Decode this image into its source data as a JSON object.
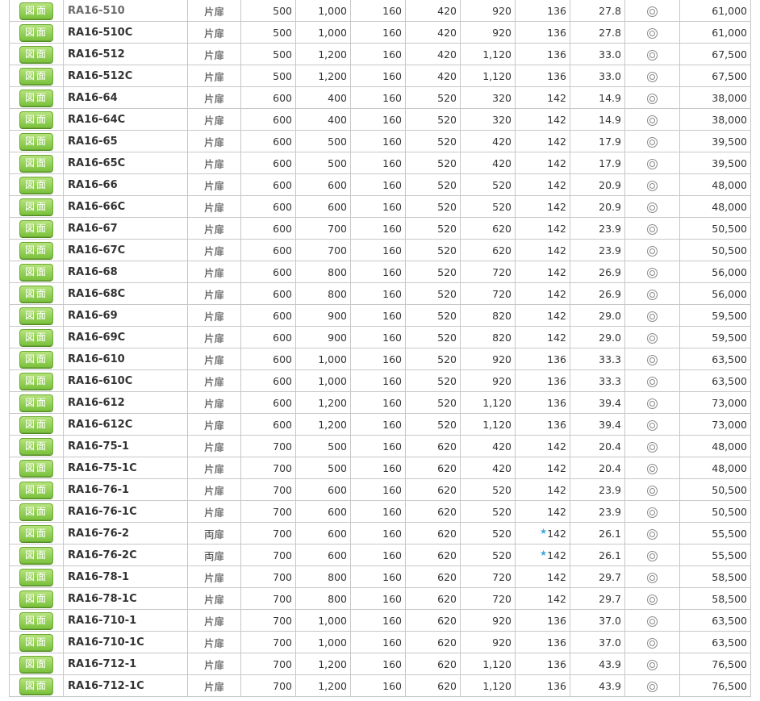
{
  "button_label": "図面",
  "rows": [
    [
      "RA16-510",
      "片扉",
      "500",
      "1,000",
      "160",
      "420",
      "920",
      "136",
      "27.8",
      "◎",
      "61,000",
      false,
      true
    ],
    [
      "RA16-510C",
      "片扉",
      "500",
      "1,000",
      "160",
      "420",
      "920",
      "136",
      "27.8",
      "◎",
      "61,000",
      false,
      false
    ],
    [
      "RA16-512",
      "片扉",
      "500",
      "1,200",
      "160",
      "420",
      "1,120",
      "136",
      "33.0",
      "◎",
      "67,500",
      false,
      false
    ],
    [
      "RA16-512C",
      "片扉",
      "500",
      "1,200",
      "160",
      "420",
      "1,120",
      "136",
      "33.0",
      "◎",
      "67,500",
      false,
      false
    ],
    [
      "RA16-64",
      "片扉",
      "600",
      "400",
      "160",
      "520",
      "320",
      "142",
      "14.9",
      "◎",
      "38,000",
      false,
      false
    ],
    [
      "RA16-64C",
      "片扉",
      "600",
      "400",
      "160",
      "520",
      "320",
      "142",
      "14.9",
      "◎",
      "38,000",
      false,
      false
    ],
    [
      "RA16-65",
      "片扉",
      "600",
      "500",
      "160",
      "520",
      "420",
      "142",
      "17.9",
      "◎",
      "39,500",
      false,
      false
    ],
    [
      "RA16-65C",
      "片扉",
      "600",
      "500",
      "160",
      "520",
      "420",
      "142",
      "17.9",
      "◎",
      "39,500",
      false,
      false
    ],
    [
      "RA16-66",
      "片扉",
      "600",
      "600",
      "160",
      "520",
      "520",
      "142",
      "20.9",
      "◎",
      "48,000",
      false,
      false
    ],
    [
      "RA16-66C",
      "片扉",
      "600",
      "600",
      "160",
      "520",
      "520",
      "142",
      "20.9",
      "◎",
      "48,000",
      false,
      false
    ],
    [
      "RA16-67",
      "片扉",
      "600",
      "700",
      "160",
      "520",
      "620",
      "142",
      "23.9",
      "◎",
      "50,500",
      false,
      false
    ],
    [
      "RA16-67C",
      "片扉",
      "600",
      "700",
      "160",
      "520",
      "620",
      "142",
      "23.9",
      "◎",
      "50,500",
      false,
      false
    ],
    [
      "RA16-68",
      "片扉",
      "600",
      "800",
      "160",
      "520",
      "720",
      "142",
      "26.9",
      "◎",
      "56,000",
      false,
      false
    ],
    [
      "RA16-68C",
      "片扉",
      "600",
      "800",
      "160",
      "520",
      "720",
      "142",
      "26.9",
      "◎",
      "56,000",
      false,
      false
    ],
    [
      "RA16-69",
      "片扉",
      "600",
      "900",
      "160",
      "520",
      "820",
      "142",
      "29.0",
      "◎",
      "59,500",
      false,
      false
    ],
    [
      "RA16-69C",
      "片扉",
      "600",
      "900",
      "160",
      "520",
      "820",
      "142",
      "29.0",
      "◎",
      "59,500",
      false,
      false
    ],
    [
      "RA16-610",
      "片扉",
      "600",
      "1,000",
      "160",
      "520",
      "920",
      "136",
      "33.3",
      "◎",
      "63,500",
      false,
      false
    ],
    [
      "RA16-610C",
      "片扉",
      "600",
      "1,000",
      "160",
      "520",
      "920",
      "136",
      "33.3",
      "◎",
      "63,500",
      false,
      false
    ],
    [
      "RA16-612",
      "片扉",
      "600",
      "1,200",
      "160",
      "520",
      "1,120",
      "136",
      "39.4",
      "◎",
      "73,000",
      false,
      false
    ],
    [
      "RA16-612C",
      "片扉",
      "600",
      "1,200",
      "160",
      "520",
      "1,120",
      "136",
      "39.4",
      "◎",
      "73,000",
      false,
      false
    ],
    [
      "RA16-75-1",
      "片扉",
      "700",
      "500",
      "160",
      "620",
      "420",
      "142",
      "20.4",
      "◎",
      "48,000",
      false,
      false
    ],
    [
      "RA16-75-1C",
      "片扉",
      "700",
      "500",
      "160",
      "620",
      "420",
      "142",
      "20.4",
      "◎",
      "48,000",
      false,
      false
    ],
    [
      "RA16-76-1",
      "片扉",
      "700",
      "600",
      "160",
      "620",
      "520",
      "142",
      "23.9",
      "◎",
      "50,500",
      false,
      false
    ],
    [
      "RA16-76-1C",
      "片扉",
      "700",
      "600",
      "160",
      "620",
      "520",
      "142",
      "23.9",
      "◎",
      "50,500",
      false,
      false
    ],
    [
      "RA16-76-2",
      "両扉",
      "700",
      "600",
      "160",
      "620",
      "520",
      "142",
      "26.1",
      "◎",
      "55,500",
      true,
      false
    ],
    [
      "RA16-76-2C",
      "両扉",
      "700",
      "600",
      "160",
      "620",
      "520",
      "142",
      "26.1",
      "◎",
      "55,500",
      true,
      false
    ],
    [
      "RA16-78-1",
      "片扉",
      "700",
      "800",
      "160",
      "620",
      "720",
      "142",
      "29.7",
      "◎",
      "58,500",
      false,
      false
    ],
    [
      "RA16-78-1C",
      "片扉",
      "700",
      "800",
      "160",
      "620",
      "720",
      "142",
      "29.7",
      "◎",
      "58,500",
      false,
      false
    ],
    [
      "RA16-710-1",
      "片扉",
      "700",
      "1,000",
      "160",
      "620",
      "920",
      "136",
      "37.0",
      "◎",
      "63,500",
      false,
      false
    ],
    [
      "RA16-710-1C",
      "片扉",
      "700",
      "1,000",
      "160",
      "620",
      "920",
      "136",
      "37.0",
      "◎",
      "63,500",
      false,
      false
    ],
    [
      "RA16-712-1",
      "片扉",
      "700",
      "1,200",
      "160",
      "620",
      "1,120",
      "136",
      "43.9",
      "◎",
      "76,500",
      false,
      false
    ],
    [
      "RA16-712-1C",
      "片扉",
      "700",
      "1,200",
      "160",
      "620",
      "1,120",
      "136",
      "43.9",
      "◎",
      "76,500",
      false,
      false
    ]
  ],
  "star_marker": "★"
}
